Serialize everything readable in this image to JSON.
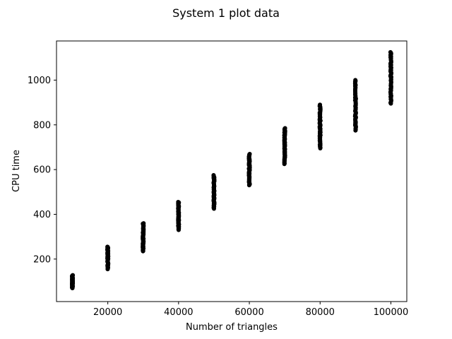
{
  "chart_data": {
    "type": "scatter",
    "title": "System 1 plot data",
    "xlabel": "Number of triangles",
    "ylabel": "CPU time",
    "xlim": [
      5500,
      104500
    ],
    "ylim": [
      10,
      1175
    ],
    "xticks": [
      20000,
      40000,
      60000,
      80000,
      100000
    ],
    "yticks": [
      200,
      400,
      600,
      800,
      1000
    ],
    "grid": false,
    "marker_color": "#000000",
    "series": [
      {
        "points": [
          {
            "x": 10000,
            "y_min": 70,
            "y_max": 128
          },
          {
            "x": 20000,
            "y_min": 155,
            "y_max": 255
          },
          {
            "x": 30000,
            "y_min": 235,
            "y_max": 360
          },
          {
            "x": 40000,
            "y_min": 330,
            "y_max": 455
          },
          {
            "x": 50000,
            "y_min": 425,
            "y_max": 575
          },
          {
            "x": 60000,
            "y_min": 530,
            "y_max": 670
          },
          {
            "x": 70000,
            "y_min": 625,
            "y_max": 785
          },
          {
            "x": 80000,
            "y_min": 695,
            "y_max": 890
          },
          {
            "x": 90000,
            "y_min": 775,
            "y_max": 1000
          },
          {
            "x": 100000,
            "y_min": 895,
            "y_max": 1125
          }
        ]
      }
    ]
  }
}
